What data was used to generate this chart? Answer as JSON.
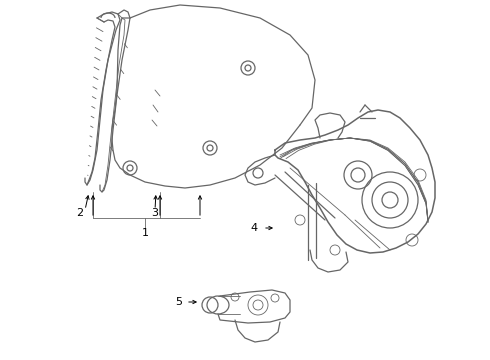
{
  "background_color": "#ffffff",
  "line_color": "#666666",
  "label_color": "#000000",
  "fig_width": 4.9,
  "fig_height": 3.6,
  "dpi": 100
}
